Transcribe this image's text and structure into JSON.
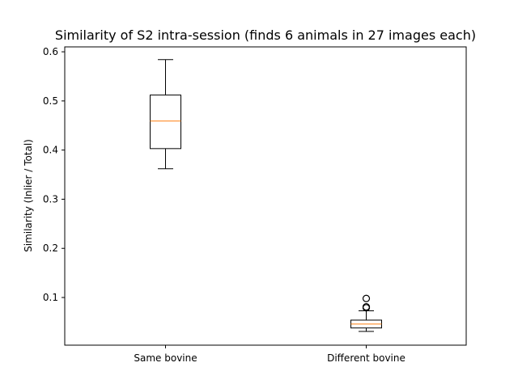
{
  "chart_data": {
    "type": "boxplot",
    "title": "Similarity of S2 intra-session (finds 6 animals in 27 images each)",
    "xlabel": "",
    "ylabel": "Similarity  (Inlier / Total)",
    "ylim": [
      0.003,
      0.61
    ],
    "yticks": [
      0.1,
      0.2,
      0.3,
      0.4,
      0.5,
      0.6
    ],
    "ytick_labels": [
      "0.1",
      "0.2",
      "0.3",
      "0.4",
      "0.5",
      "0.6"
    ],
    "categories": [
      "Same bovine",
      "Different bovine"
    ],
    "boxes": [
      {
        "category": "Same bovine",
        "whisker_low": 0.362,
        "q1": 0.403,
        "median": 0.459,
        "q3": 0.512,
        "whisker_high": 0.584,
        "outliers": []
      },
      {
        "category": "Different bovine",
        "whisker_low": 0.031,
        "q1": 0.038,
        "median": 0.046,
        "q3": 0.054,
        "whisker_high": 0.073,
        "outliers": [
          0.079,
          0.081,
          0.098
        ]
      }
    ],
    "grid": false,
    "colors": {
      "box": "#000000",
      "median": "#ff7f0e",
      "outlier": "#000000"
    }
  }
}
